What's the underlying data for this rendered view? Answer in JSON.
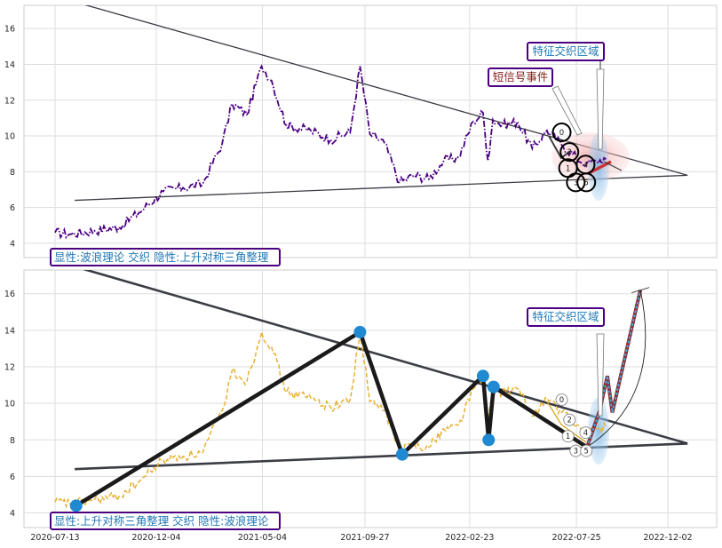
{
  "chart_data": [
    {
      "type": "line",
      "ylim": [
        3.2,
        17.3
      ],
      "yticks": [
        "4",
        "6",
        "8",
        "10",
        "12",
        "14",
        "16"
      ],
      "series": [
        {
          "color": "#4b0082",
          "style": "dash-dot",
          "x": [
            "2020-07-13",
            "2020-08-03",
            "2020-09-07",
            "2020-10-12",
            "2020-11-09",
            "2020-12-14",
            "2021-01-11",
            "2021-02-08",
            "2021-03-08",
            "2021-03-22",
            "2021-04-12",
            "2021-05-03",
            "2021-05-17",
            "2021-06-07",
            "2021-07-12",
            "2021-08-09",
            "2021-09-06",
            "2021-09-20",
            "2021-10-04",
            "2021-10-25",
            "2021-11-15",
            "2021-12-06",
            "2021-12-27",
            "2022-01-17",
            "2022-02-07",
            "2022-02-28",
            "2022-03-14",
            "2022-03-21",
            "2022-03-28",
            "2022-04-11",
            "2022-05-02",
            "2022-05-23",
            "2022-06-13",
            "2022-07-04",
            "2022-07-25",
            "2022-08-08",
            "2022-08-22",
            "2022-09-05"
          ],
          "values": [
            4.6,
            4.5,
            4.7,
            4.9,
            5.7,
            6.9,
            7.1,
            7.3,
            9.6,
            11.8,
            11.2,
            13.9,
            13.1,
            10.6,
            10.3,
            9.8,
            10.2,
            13.9,
            10.1,
            9.6,
            7.4,
            7.8,
            7.6,
            8.6,
            8.8,
            10.8,
            11.3,
            8.6,
            10.9,
            10.6,
            10.8,
            9.3,
            10.3,
            9.5,
            8.8,
            8.4,
            8.6,
            8.7
          ]
        }
      ],
      "triangle_upper": {
        "x": [
          "2020-07-13",
          "2022-12-30"
        ],
        "y": [
          17.8,
          7.8
        ]
      },
      "triangle_lower": {
        "x": [
          "2020-08-10",
          "2022-12-30"
        ],
        "y": [
          6.4,
          7.8
        ]
      },
      "circles": [
        {
          "label": "0",
          "x": "2022-07-04",
          "y": 10.2
        },
        {
          "label": "2",
          "x": "2022-07-15",
          "y": 9.1
        },
        {
          "label": "1",
          "x": "2022-07-13",
          "y": 8.2
        },
        {
          "label": "3",
          "x": "2022-07-24",
          "y": 7.4
        },
        {
          "label": "4",
          "x": "2022-08-07",
          "y": 8.4
        },
        {
          "label": "5",
          "x": "2022-08-08",
          "y": 7.4
        }
      ],
      "annotations": [
        {
          "text": "特征交织区域",
          "color": "#1f77b4"
        },
        {
          "text": "短信号事件",
          "color": "#8b1a1a"
        },
        {
          "text": "显性:波浪理论 交织 隐性:上升对称三角整理",
          "color": "#1f77b4"
        }
      ]
    },
    {
      "type": "line",
      "ylim": [
        3.2,
        17.3
      ],
      "yticks": [
        "4",
        "6",
        "8",
        "10",
        "12",
        "14",
        "16"
      ],
      "xticks": [
        "2020-07-13",
        "2020-12-04",
        "2021-05-04",
        "2021-09-27",
        "2022-02-23",
        "2022-07-25",
        "2022-12-02"
      ],
      "series": [
        {
          "color": "#e8b030",
          "style": "dashed",
          "x": [
            "2020-07-13",
            "2020-08-03",
            "2020-09-07",
            "2020-10-12",
            "2020-11-09",
            "2020-12-14",
            "2021-01-11",
            "2021-02-08",
            "2021-03-08",
            "2021-03-22",
            "2021-04-12",
            "2021-05-03",
            "2021-05-17",
            "2021-06-07",
            "2021-07-12",
            "2021-08-09",
            "2021-09-06",
            "2021-09-20",
            "2021-10-04",
            "2021-10-25",
            "2021-11-15",
            "2021-12-06",
            "2021-12-27",
            "2022-01-17",
            "2022-02-07",
            "2022-02-28",
            "2022-03-14",
            "2022-03-21",
            "2022-03-28",
            "2022-04-11",
            "2022-05-02",
            "2022-05-23",
            "2022-06-13",
            "2022-07-04",
            "2022-07-25",
            "2022-08-08",
            "2022-08-22",
            "2022-09-05"
          ],
          "values": [
            4.6,
            4.5,
            4.7,
            4.9,
            5.7,
            6.9,
            7.1,
            7.3,
            9.6,
            11.8,
            11.2,
            13.9,
            13.1,
            10.6,
            10.3,
            9.8,
            10.2,
            13.9,
            10.1,
            9.6,
            7.4,
            7.8,
            7.6,
            8.6,
            8.8,
            10.8,
            11.3,
            8.6,
            10.9,
            10.6,
            10.8,
            9.3,
            10.3,
            9.5,
            8.8,
            8.4,
            8.6,
            8.7
          ]
        }
      ],
      "wave_points": {
        "x": [
          "2020-08-12",
          "2021-09-20",
          "2021-11-19",
          "2022-03-14",
          "2022-03-22",
          "2022-03-29",
          "2022-08-09"
        ],
        "y": [
          4.4,
          13.9,
          7.2,
          11.5,
          8.0,
          10.9,
          7.6
        ]
      },
      "triangle_upper": {
        "x": [
          "2020-07-13",
          "2022-12-30"
        ],
        "y": [
          17.8,
          7.8
        ]
      },
      "triangle_lower": {
        "x": [
          "2020-08-10",
          "2022-12-30"
        ],
        "y": [
          6.4,
          7.8
        ]
      },
      "projection": {
        "x": [
          "2022-08-09",
          "2022-08-27",
          "2022-09-07",
          "2022-09-14",
          "2022-10-24"
        ],
        "y": [
          7.6,
          9.6,
          11.5,
          9.5,
          16.2
        ]
      },
      "circles": [
        {
          "label": "0",
          "x": "2022-07-04",
          "y": 10.2
        },
        {
          "label": "2",
          "x": "2022-07-15",
          "y": 9.1
        },
        {
          "label": "1",
          "x": "2022-07-13",
          "y": 8.2
        },
        {
          "label": "3",
          "x": "2022-07-24",
          "y": 7.4
        },
        {
          "label": "4",
          "x": "2022-08-07",
          "y": 8.4
        },
        {
          "label": "5",
          "x": "2022-08-08",
          "y": 7.4
        }
      ],
      "annotations": [
        {
          "text": "特征交织区域",
          "color": "#1f77b4"
        },
        {
          "text": "显性:上升对称三角整理 交织 隐性:波浪理论",
          "color": "#1f77b4"
        }
      ]
    }
  ]
}
